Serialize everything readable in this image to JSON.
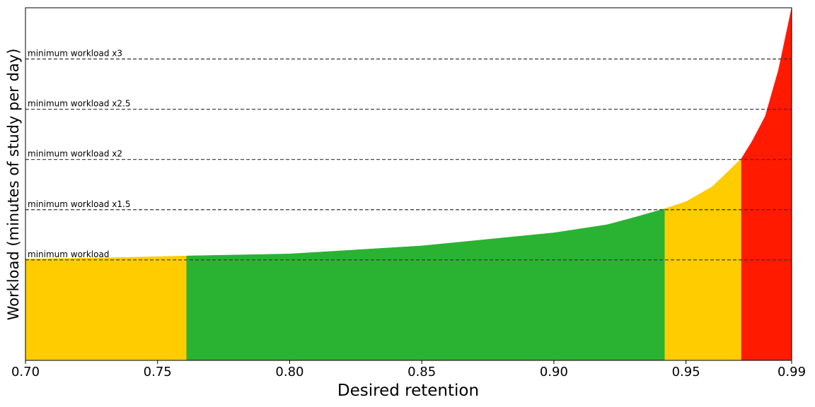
{
  "chart_data": {
    "type": "area",
    "xlabel": "Desired retention",
    "ylabel": "Workload (minutes of study per day)",
    "xlim": [
      0.7,
      0.99
    ],
    "ylim": [
      0,
      3.51
    ],
    "xticks": [
      {
        "value": 0.7,
        "label": "0.70"
      },
      {
        "value": 0.75,
        "label": "0.75"
      },
      {
        "value": 0.8,
        "label": "0.80"
      },
      {
        "value": 0.85,
        "label": "0.85"
      },
      {
        "value": 0.9,
        "label": "0.90"
      },
      {
        "value": 0.95,
        "label": "0.95"
      },
      {
        "value": 0.99,
        "label": "0.99"
      }
    ],
    "hlines": [
      {
        "value": 1,
        "label": "minimum workload"
      },
      {
        "value": 1.5,
        "label": "minimum workload x1.5"
      },
      {
        "value": 2,
        "label": "minimum workload x2"
      },
      {
        "value": 2.5,
        "label": "minimum workload x2.5"
      },
      {
        "value": 3,
        "label": "minimum workload x3"
      }
    ],
    "series": [
      {
        "color": "#ffcc00",
        "x": [
          0.7,
          0.73,
          0.761
        ],
        "values": [
          1.01,
          1.02,
          1.04
        ]
      },
      {
        "color": "#2ab332",
        "x": [
          0.761,
          0.8,
          0.85,
          0.9,
          0.92,
          0.93,
          0.942
        ],
        "values": [
          1.04,
          1.06,
          1.14,
          1.27,
          1.35,
          1.42,
          1.51
        ]
      },
      {
        "color": "#ffcc00",
        "x": [
          0.942,
          0.95,
          0.96,
          0.971
        ],
        "values": [
          1.51,
          1.58,
          1.73,
          2.01
        ]
      },
      {
        "color": "#ff1a00",
        "x": [
          0.971,
          0.975,
          0.98,
          0.985,
          0.99
        ],
        "values": [
          2.01,
          2.18,
          2.43,
          2.89,
          3.51
        ]
      }
    ]
  }
}
